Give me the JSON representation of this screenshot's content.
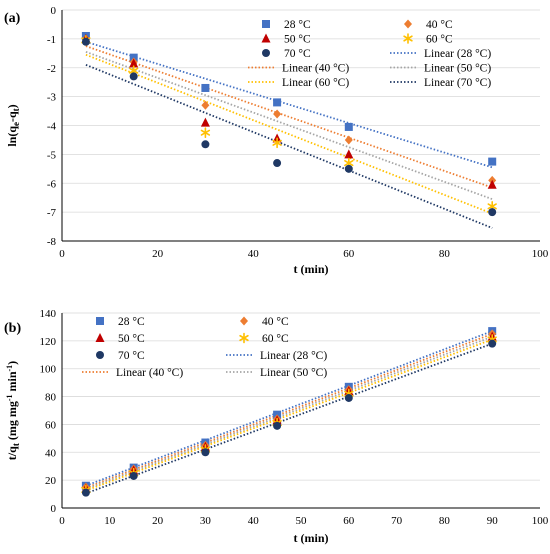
{
  "chart_data": [
    {
      "type": "scatter",
      "panel_label": "(a)",
      "xlabel": "t (min)",
      "ylabel": "ln(qe-qt)",
      "xlim": [
        0,
        100
      ],
      "ylim": [
        -8,
        0
      ],
      "xticks": [
        "0",
        "20",
        "40",
        "60",
        "80",
        "100"
      ],
      "yticks": [
        "0",
        "-1",
        "-2",
        "-3",
        "-4",
        "-5",
        "-6",
        "-7",
        "-8"
      ],
      "grid": "horizontal",
      "series": [
        {
          "name": "28  °C",
          "marker": "square",
          "color": "#4472C4",
          "x": [
            5,
            15,
            30,
            45,
            60,
            90
          ],
          "y": [
            -0.9,
            -1.65,
            -2.7,
            -3.2,
            -4.05,
            -5.25
          ]
        },
        {
          "name": "40  °C",
          "marker": "diamond",
          "color": "#ED7D31",
          "x": [
            5,
            15,
            30,
            45,
            60,
            90
          ],
          "y": [
            -1.0,
            -1.8,
            -3.3,
            -3.6,
            -4.5,
            -5.9
          ]
        },
        {
          "name": "50  °C",
          "marker": "triangle",
          "color": "#C00000",
          "x": [
            5,
            15,
            30,
            45,
            60,
            90
          ],
          "y": [
            -1.0,
            -1.85,
            -3.9,
            -4.45,
            -5.0,
            -6.05
          ]
        },
        {
          "name": "60  °C",
          "marker": "asterisk",
          "color": "#FFC000",
          "x": [
            5,
            15,
            30,
            45,
            60,
            90
          ],
          "y": [
            -1.05,
            -2.1,
            -4.25,
            -4.6,
            -5.3,
            -6.8
          ]
        },
        {
          "name": "70  °C",
          "marker": "circle",
          "color": "#1F3864",
          "x": [
            5,
            15,
            30,
            45,
            60,
            90
          ],
          "y": [
            -1.1,
            -2.3,
            -4.65,
            -5.3,
            -5.5,
            -7.0
          ]
        }
      ],
      "fits": [
        {
          "name": "Linear (28  °C)",
          "color": "#4472C4",
          "x": [
            5,
            90
          ],
          "y": [
            -1.1,
            -5.45
          ]
        },
        {
          "name": "Linear (40  °C)",
          "color": "#ED7D31",
          "x": [
            5,
            90
          ],
          "y": [
            -1.25,
            -6.15
          ]
        },
        {
          "name": "Linear (50  °C)",
          "color": "#A5A5A5",
          "x": [
            5,
            90
          ],
          "y": [
            -1.45,
            -6.55
          ]
        },
        {
          "name": "Linear (60  °C)",
          "color": "#FFC000",
          "x": [
            5,
            90
          ],
          "y": [
            -1.55,
            -7.05
          ]
        },
        {
          "name": "Linear (70  °C)",
          "color": "#1F3864",
          "x": [
            5,
            90
          ],
          "y": [
            -1.9,
            -7.55
          ]
        }
      ],
      "legend_order": [
        "28  °C",
        "40  °C",
        "50  °C",
        "60  °C",
        "70  °C",
        "Linear (28  °C)",
        "Linear (40  °C)",
        "Linear (50  °C)",
        "Linear (60  °C)",
        "Linear (70  °C)"
      ]
    },
    {
      "type": "scatter",
      "panel_label": "(b)",
      "xlabel": "t (min)",
      "ylabel": "t/qt (mg mg-1 min-1)",
      "xlim": [
        0,
        100
      ],
      "ylim": [
        0,
        140
      ],
      "xticks": [
        "0",
        "10",
        "20",
        "30",
        "40",
        "50",
        "60",
        "70",
        "80",
        "90",
        "100"
      ],
      "yticks": [
        "0",
        "20",
        "40",
        "60",
        "80",
        "100",
        "120",
        "140"
      ],
      "grid": "horizontal",
      "series": [
        {
          "name": "28  °C",
          "marker": "square",
          "color": "#4472C4",
          "x": [
            5,
            15,
            30,
            45,
            60,
            90
          ],
          "y": [
            16,
            29,
            47,
            67,
            87,
            127
          ]
        },
        {
          "name": "40  °C",
          "marker": "diamond",
          "color": "#ED7D31",
          "x": [
            5,
            15,
            30,
            45,
            60,
            90
          ],
          "y": [
            15,
            28,
            45,
            64,
            85,
            125
          ]
        },
        {
          "name": "50  °C",
          "marker": "triangle",
          "color": "#C00000",
          "x": [
            5,
            15,
            30,
            45,
            60,
            90
          ],
          "y": [
            14,
            27,
            44,
            63,
            84,
            123
          ]
        },
        {
          "name": "60  °C",
          "marker": "asterisk",
          "color": "#FFC000",
          "x": [
            5,
            15,
            30,
            45,
            60,
            90
          ],
          "y": [
            13,
            25,
            42,
            61,
            82,
            121
          ]
        },
        {
          "name": "70  °C",
          "marker": "circle",
          "color": "#1F3864",
          "x": [
            5,
            15,
            30,
            45,
            60,
            90
          ],
          "y": [
            11,
            23,
            40,
            59,
            79,
            118
          ]
        }
      ],
      "fits": [
        {
          "name": "Linear (28  °C)",
          "color": "#4472C4",
          "x": [
            5,
            90
          ],
          "y": [
            16,
            127
          ]
        },
        {
          "name": "Linear (40  °C)",
          "color": "#ED7D31",
          "x": [
            5,
            90
          ],
          "y": [
            14.5,
            125
          ]
        },
        {
          "name": "Linear (50  °C)",
          "color": "#A5A5A5",
          "x": [
            5,
            90
          ],
          "y": [
            13.5,
            123
          ]
        },
        {
          "name": "",
          "color": "#FFC000",
          "x": [
            5,
            90
          ],
          "y": [
            12.5,
            121
          ]
        },
        {
          "name": "",
          "color": "#1F3864",
          "x": [
            5,
            90
          ],
          "y": [
            10.5,
            118
          ]
        }
      ],
      "legend_order": [
        "28  °C",
        "40  °C",
        "50  °C",
        "60  °C",
        "70  °C",
        "Linear (28  °C)",
        "Linear (40  °C)",
        "Linear (50  °C)"
      ]
    }
  ]
}
